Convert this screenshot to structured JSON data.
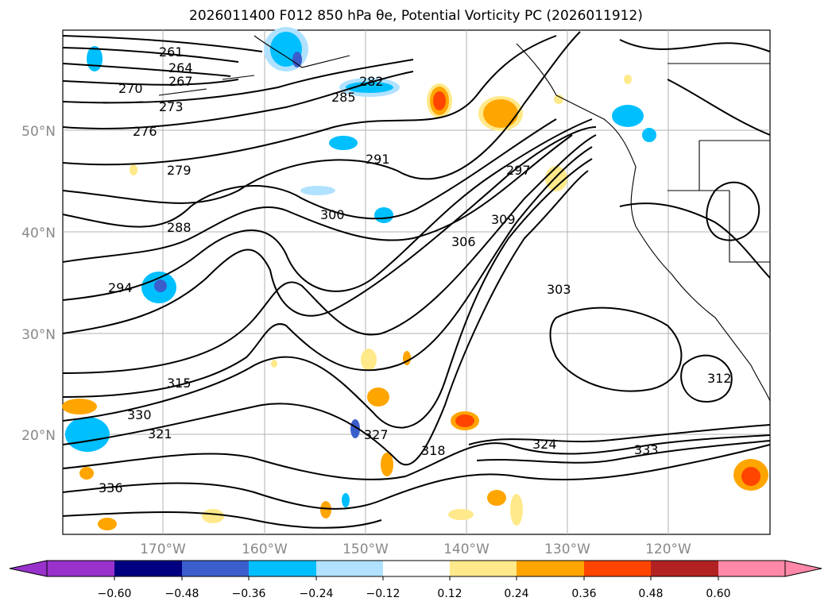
{
  "title": "2026011400 F012 850 hPa θe, Potential Vorticity PC (2026011912)",
  "latitude_labels": [
    "50°N",
    "40°N",
    "30°N",
    "20°N"
  ],
  "longitude_labels": [
    "170°W",
    "160°W",
    "150°W",
    "140°W",
    "130°W",
    "120°W"
  ],
  "contour_labels": [
    "261",
    "264",
    "267",
    "270",
    "273",
    "276",
    "279",
    "282",
    "285",
    "288",
    "291",
    "294",
    "297",
    "300",
    "303",
    "306",
    "309",
    "312",
    "315",
    "318",
    "321",
    "324",
    "327",
    "330",
    "333",
    "336"
  ],
  "colorbar": {
    "ticks": [
      "−0.60",
      "−0.48",
      "−0.36",
      "−0.24",
      "−0.12",
      "0.12",
      "0.24",
      "0.36",
      "0.48",
      "0.60"
    ],
    "colors": [
      "#9932CC",
      "#000080",
      "#3A5FCD",
      "#00BFFF",
      "#B0E2FF",
      "#FFFFFF",
      "#FFE98A",
      "#FFA500",
      "#FF4500",
      "#B22222",
      "#FF88A8"
    ]
  }
}
